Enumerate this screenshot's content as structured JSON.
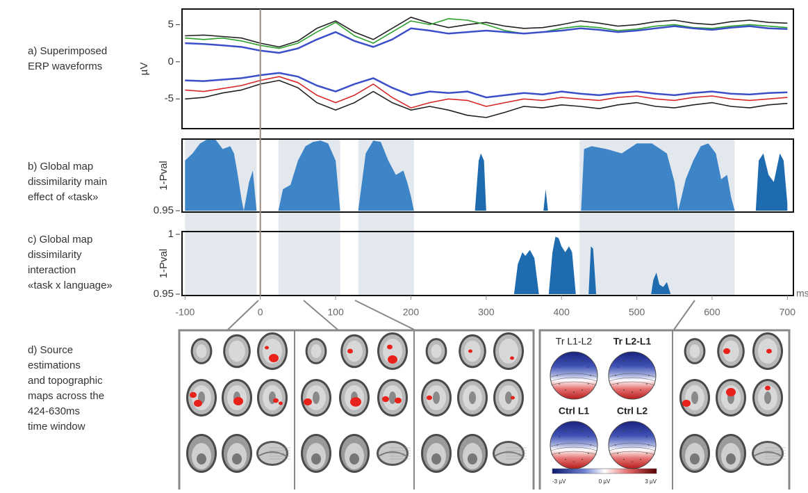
{
  "chart_data": [
    {
      "type": "line",
      "panel_label": [
        "a) Superimposed",
        "ERP waveforms"
      ],
      "ylabel": "µV",
      "xlim": [
        -104,
        708
      ],
      "ylim": [
        -9,
        7.1
      ],
      "yticks": [
        5,
        0,
        -5
      ],
      "x": [
        -100,
        -75,
        -50,
        -25,
        0,
        25,
        50,
        75,
        100,
        125,
        150,
        175,
        200,
        225,
        250,
        275,
        300,
        325,
        350,
        375,
        400,
        425,
        450,
        475,
        500,
        525,
        550,
        575,
        600,
        625,
        650,
        675,
        700
      ],
      "series": [
        {
          "color": "#222222",
          "values": [
            -5.0,
            -4.8,
            -4.2,
            -3.8,
            -3.0,
            -2.5,
            -3.5,
            -5.5,
            -6.5,
            -5.5,
            -4.0,
            -5.5,
            -6.5,
            -6.0,
            -6.5,
            -7.2,
            -7.5,
            -6.8,
            -6.0,
            -6.2,
            -5.8,
            -6.0,
            -6.3,
            -5.8,
            -5.5,
            -6.0,
            -6.2,
            -5.8,
            -5.5,
            -6.0,
            -6.2,
            -5.8,
            -5.6
          ]
        },
        {
          "color": "#222222",
          "values": [
            3.5,
            3.6,
            3.4,
            3.2,
            2.5,
            2.0,
            2.8,
            4.5,
            5.5,
            4.0,
            3.0,
            4.5,
            6.0,
            5.2,
            4.6,
            5.0,
            5.3,
            4.8,
            4.5,
            4.6,
            5.0,
            5.5,
            5.2,
            4.8,
            5.0,
            5.4,
            5.6,
            5.2,
            5.0,
            5.4,
            5.6,
            5.3,
            5.2
          ]
        },
        {
          "color": "#2ca02c",
          "values": [
            3.2,
            3.0,
            3.2,
            2.8,
            2.2,
            1.8,
            2.5,
            4.0,
            5.3,
            3.5,
            2.5,
            4.0,
            5.5,
            5.0,
            5.8,
            5.6,
            5.0,
            4.2,
            3.8,
            4.0,
            4.5,
            4.8,
            4.6,
            4.2,
            4.4,
            4.8,
            5.0,
            4.6,
            4.5,
            4.8,
            5.0,
            4.8,
            4.6
          ]
        },
        {
          "color": "#d62728",
          "values": [
            -3.8,
            -4.0,
            -3.6,
            -3.2,
            -2.5,
            -2.0,
            -2.8,
            -4.5,
            -5.5,
            -4.5,
            -3.0,
            -4.8,
            -6.2,
            -5.5,
            -5.0,
            -5.2,
            -6.0,
            -5.5,
            -5.0,
            -5.2,
            -4.8,
            -5.0,
            -5.2,
            -4.8,
            -4.6,
            -5.0,
            -5.2,
            -4.8,
            -4.6,
            -5.0,
            -5.2,
            -5.0,
            -4.8
          ]
        },
        {
          "color": "#3a4fc8",
          "values": [
            2.5,
            2.4,
            2.2,
            2.0,
            1.5,
            1.2,
            1.8,
            3.0,
            4.0,
            2.8,
            2.0,
            3.0,
            4.5,
            4.2,
            3.8,
            4.0,
            4.2,
            4.0,
            3.8,
            4.0,
            4.2,
            4.5,
            4.3,
            4.0,
            4.2,
            4.5,
            4.8,
            4.5,
            4.3,
            4.6,
            4.8,
            4.5,
            4.4
          ]
        },
        {
          "color": "#3a4fc8",
          "values": [
            -2.5,
            -2.6,
            -2.4,
            -2.2,
            -1.8,
            -1.5,
            -2.0,
            -3.2,
            -4.0,
            -3.0,
            -2.2,
            -3.5,
            -4.5,
            -4.0,
            -4.2,
            -4.0,
            -4.8,
            -4.5,
            -4.2,
            -4.4,
            -4.0,
            -4.3,
            -4.5,
            -4.2,
            -4.0,
            -4.3,
            -4.5,
            -4.2,
            -4.0,
            -4.3,
            -4.4,
            -4.2,
            -4.1
          ]
        }
      ]
    },
    {
      "type": "area",
      "panel_label": [
        "b) Global map",
        "dissimilarity main",
        "effect of «task»"
      ],
      "ylabel": "1-Pval",
      "xlim": [
        -104,
        708
      ],
      "ylim": [
        0.95,
        1
      ],
      "yticks": [
        0.95
      ],
      "series": [
        {
          "color": "#3d85c6",
          "x": [
            -100,
            -90,
            -80,
            -70,
            -60,
            -50,
            -40,
            -35,
            -30,
            -25,
            -22,
            -15,
            -10,
            -5
          ],
          "values": [
            0.985,
            0.99,
            0.997,
            1.0,
            1.0,
            0.993,
            0.995,
            0.99,
            0.975,
            0.958,
            0.95,
            0.97,
            0.978,
            0.95
          ]
        },
        {
          "color": "#3d85c6",
          "x": [
            24,
            30,
            40,
            50,
            60,
            70,
            80,
            90,
            100,
            106
          ],
          "values": [
            0.95,
            0.965,
            0.968,
            0.985,
            0.995,
            0.998,
            0.999,
            0.997,
            0.985,
            0.95
          ]
        },
        {
          "color": "#3d85c6",
          "x": [
            130,
            140,
            150,
            160,
            170,
            180,
            190,
            195,
            200,
            204
          ],
          "values": [
            0.95,
            0.99,
            0.999,
            0.998,
            0.985,
            0.975,
            0.978,
            0.97,
            0.96,
            0.95
          ]
        },
        {
          "color": "#1f6bb0",
          "x": [
            285,
            290,
            293,
            297,
            300
          ],
          "values": [
            0.95,
            0.985,
            0.99,
            0.985,
            0.95
          ]
        },
        {
          "color": "#1f6bb0",
          "x": [
            376,
            379,
            382
          ],
          "values": [
            0.95,
            0.965,
            0.95
          ]
        },
        {
          "color": "#3d85c6",
          "x": [
            426,
            430,
            440,
            460,
            480,
            500,
            520,
            540,
            550,
            555,
            565,
            575,
            585,
            595,
            605,
            612,
            620,
            625,
            630
          ],
          "values": [
            0.95,
            0.993,
            0.995,
            0.993,
            0.99,
            0.997,
            0.997,
            0.99,
            0.97,
            0.95,
            0.972,
            0.985,
            0.995,
            0.997,
            0.99,
            0.972,
            0.975,
            0.96,
            0.95
          ]
        },
        {
          "color": "#1f6bb0",
          "x": [
            658,
            662,
            668,
            675,
            682,
            690,
            695,
            700
          ],
          "values": [
            0.95,
            0.985,
            0.99,
            0.975,
            0.97,
            0.99,
            0.985,
            0.955
          ]
        }
      ]
    },
    {
      "type": "area",
      "panel_label": [
        "c) Global map",
        "dissimilarity",
        "interaction",
        "«task x language»"
      ],
      "ylabel": "1-Pval",
      "xlabel": "ms",
      "xlim": [
        -104,
        708
      ],
      "ylim": [
        0.95,
        1
      ],
      "yticks": [
        0.95,
        1
      ],
      "xticks": [
        -100,
        0,
        100,
        200,
        300,
        400,
        500,
        600,
        700
      ],
      "series": [
        {
          "color": "#1f6bb0",
          "x": [
            337,
            342,
            348,
            352,
            358,
            364,
            370
          ],
          "values": [
            0.95,
            0.975,
            0.985,
            0.982,
            0.987,
            0.98,
            0.95
          ]
        },
        {
          "color": "#1f6bb0",
          "x": [
            383,
            388,
            392,
            396,
            400,
            405,
            410,
            414,
            419
          ],
          "values": [
            0.95,
            0.985,
            0.998,
            0.997,
            0.99,
            0.985,
            0.99,
            0.985,
            0.95
          ]
        },
        {
          "color": "#1f6bb0",
          "x": [
            436,
            439,
            442,
            446
          ],
          "values": [
            0.95,
            0.99,
            0.988,
            0.95
          ]
        },
        {
          "color": "#1f6bb0",
          "x": [
            519,
            522,
            526,
            530,
            535,
            540,
            545
          ],
          "values": [
            0.95,
            0.962,
            0.968,
            0.958,
            0.956,
            0.96,
            0.95
          ]
        }
      ]
    }
  ],
  "time_windows": [
    [
      -100,
      -5
    ],
    [
      24,
      106
    ],
    [
      130,
      204
    ],
    [
      424,
      630
    ]
  ],
  "source_panel": {
    "panel_label": [
      "d) Source",
      "estimations",
      "and topographic",
      "maps across the",
      "424-630ms",
      "time window"
    ],
    "topomaps": [
      "Tr L1-L2",
      "Tr L2-L1",
      "Ctrl L1",
      "Ctrl L2"
    ],
    "colorbar_labels": [
      "-3 µV",
      "0 µV",
      "3 µV"
    ]
  }
}
